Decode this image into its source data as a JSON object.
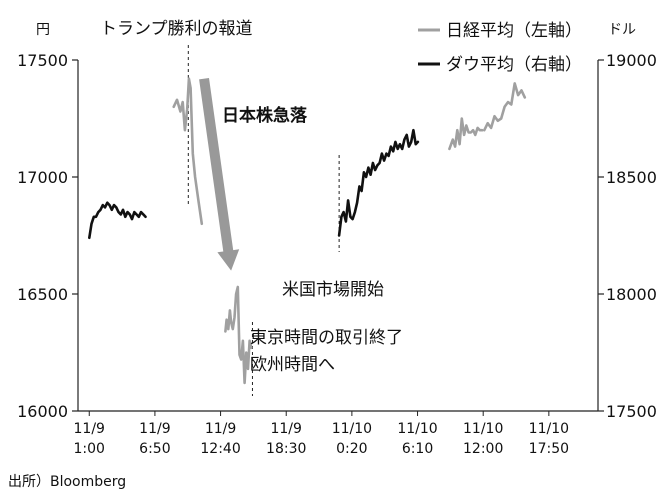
{
  "chart_data": {
    "type": "line",
    "left_axis": {
      "unit": "円",
      "ticks": [
        16000,
        16500,
        17000,
        17500
      ],
      "ylim": [
        16000,
        17500
      ]
    },
    "right_axis": {
      "unit": "ドル",
      "ticks": [
        17500,
        18000,
        18500,
        19000
      ],
      "ylim": [
        17500,
        19000
      ]
    },
    "x_tick_labels": [
      [
        "11/9",
        "1:00"
      ],
      [
        "11/9",
        "6:50"
      ],
      [
        "11/9",
        "12:40"
      ],
      [
        "11/9",
        "18:30"
      ],
      [
        "11/10",
        "0:20"
      ],
      [
        "11/10",
        "6:10"
      ],
      [
        "11/10",
        "12:00"
      ],
      [
        "11/10",
        "17:50"
      ]
    ],
    "x_tick_hours": [
      1.0,
      6.833,
      12.667,
      18.5,
      24.333,
      30.167,
      36.0,
      41.833
    ],
    "legend": [
      {
        "name": "日経平均（左軸）",
        "color": "#a0a0a0"
      },
      {
        "name": "ダウ平均（右軸）",
        "color": "#111111"
      }
    ],
    "annotations": {
      "trump_victory": "トランプ勝利の報道",
      "nikkei_plunge": "日本株急落",
      "us_open": "米国市場開始",
      "tokyo_close_line1": "東京時間の取引終了",
      "tokyo_close_line2": "欧州時間へ"
    },
    "event_lines_hours": [
      9.8,
      23.2,
      15.5
    ],
    "arrow": {
      "from_hour": 11.2,
      "from_value": 17420,
      "to_hour": 13.6,
      "to_value": 16600,
      "color": "#999999"
    },
    "series": [
      {
        "name": "日経平均（左軸）",
        "axis": "left",
        "color": "#a0a0a0",
        "segments": [
          {
            "x": [
              8.5,
              8.8,
              9.1,
              9.3,
              9.5,
              9.7,
              9.85,
              10.0,
              10.2,
              10.4,
              10.7,
              11.0
            ],
            "y": [
              17300,
              17330,
              17280,
              17320,
              17200,
              17290,
              17420,
              17380,
              17100,
              17000,
              16900,
              16800
            ]
          },
          {
            "x": [
              13.1,
              13.2,
              13.35,
              13.5,
              13.6,
              13.75,
              13.9,
              14.05,
              14.2,
              14.35,
              14.5,
              14.65,
              14.8,
              14.95,
              15.1,
              15.25,
              15.4
            ],
            "y": [
              16340,
              16390,
              16350,
              16430,
              16380,
              16350,
              16400,
              16500,
              16530,
              16240,
              16220,
              16300,
              16120,
              16250,
              16180,
              16300,
              16270
            ]
          },
          {
            "x": [
              33.0,
              33.3,
              33.5,
              33.7,
              33.9,
              34.1,
              34.3,
              34.5,
              34.7,
              34.9,
              35.1,
              35.3,
              35.5,
              35.7,
              35.9
            ],
            "y": [
              17120,
              17160,
              17130,
              17200,
              17140,
              17250,
              17180,
              17220,
              17190,
              17190,
              17200,
              17180,
              17210,
              17200,
              17200
            ]
          },
          {
            "x": [
              36.1,
              36.4,
              36.7,
              37.0,
              37.3,
              37.6,
              37.9,
              38.2,
              38.5,
              38.8,
              39.1,
              39.4,
              39.7
            ],
            "y": [
              17200,
              17230,
              17210,
              17260,
              17240,
              17250,
              17300,
              17320,
              17310,
              17400,
              17350,
              17370,
              17340
            ]
          }
        ]
      },
      {
        "name": "ダウ平均（右軸）",
        "axis": "right",
        "color": "#111111",
        "segments": [
          {
            "x": [
              1.0,
              1.2,
              1.4,
              1.6,
              1.8,
              2.0,
              2.2,
              2.4,
              2.6,
              2.8,
              3.0,
              3.2,
              3.4,
              3.6,
              3.8,
              4.0,
              4.2,
              4.4,
              4.6,
              4.8,
              5.0,
              5.2,
              5.4,
              5.6,
              5.8,
              6.0
            ],
            "y": [
              18240,
              18300,
              18330,
              18330,
              18350,
              18360,
              18380,
              18370,
              18390,
              18380,
              18360,
              18380,
              18370,
              18350,
              18340,
              18360,
              18330,
              18350,
              18340,
              18320,
              18350,
              18340,
              18330,
              18350,
              18340,
              18330
            ]
          },
          {
            "x": [
              23.2,
              23.4,
              23.6,
              23.8,
              24.0,
              24.2,
              24.4,
              24.6,
              24.8,
              25.0,
              25.2,
              25.4,
              25.6,
              25.8,
              26.0,
              26.2,
              26.4,
              26.6,
              26.8,
              27.0,
              27.2,
              27.4,
              27.6,
              27.8,
              28.0,
              28.2,
              28.4,
              28.6,
              28.8,
              29.0,
              29.2,
              29.4,
              29.6,
              29.8,
              30.0,
              30.2
            ],
            "y": [
              18250,
              18330,
              18350,
              18310,
              18400,
              18330,
              18320,
              18350,
              18390,
              18460,
              18440,
              18520,
              18500,
              18540,
              18510,
              18560,
              18530,
              18550,
              18560,
              18600,
              18570,
              18600,
              18590,
              18630,
              18610,
              18650,
              18620,
              18640,
              18620,
              18660,
              18680,
              18630,
              18650,
              18700,
              18640,
              18650
            ]
          }
        ]
      }
    ]
  },
  "source": "出所）Bloomberg"
}
